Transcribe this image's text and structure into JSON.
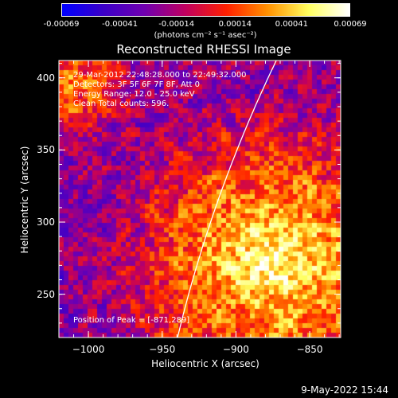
{
  "colorbar": {
    "tick_labels": [
      "-0.00069",
      "-0.00041",
      "-0.00014",
      "0.00014",
      "0.00041",
      "0.00069"
    ],
    "tick_values": [
      -0.00069,
      -0.00041,
      -0.00014,
      0.00014,
      0.00041,
      0.00069
    ],
    "range": [
      -0.00069,
      0.00069
    ],
    "units_label": "(photons cm⁻² s⁻¹ asec⁻²)",
    "colormap": [
      "#0000ff",
      "#3c00c8",
      "#7000b0",
      "#c00060",
      "#ff2000",
      "#ff9000",
      "#ffff60",
      "#ffffff"
    ]
  },
  "plot": {
    "title": "Reconstructed RHESSI Image",
    "annotations": [
      "29-Mar-2012 22:48:28.000 to 22:49:32.000",
      "Detectors: 3F 5F 6F 7F 8F, Att 0",
      "Energy Range: 12.0 - 25.0 keV",
      "Clean    Total counts: 596."
    ],
    "peak_label": "Position of Peak = [-871,289]",
    "xlabel": "Heliocentric X (arcsec)",
    "ylabel": "Heliocentric Y (arcsec)",
    "x_ticks": [
      -1000,
      -950,
      -900,
      -850
    ],
    "y_ticks": [
      250,
      300,
      350,
      400
    ],
    "x_tick_labels": [
      "−1000",
      "−950",
      "−900",
      "−850"
    ],
    "y_tick_labels": [
      "250",
      "300",
      "350",
      "400"
    ],
    "xlim": [
      -1020,
      -829
    ],
    "ylim": [
      220,
      412
    ],
    "limb_color": "#ffffff"
  },
  "timestamp": "9-May-2022 15:44"
}
